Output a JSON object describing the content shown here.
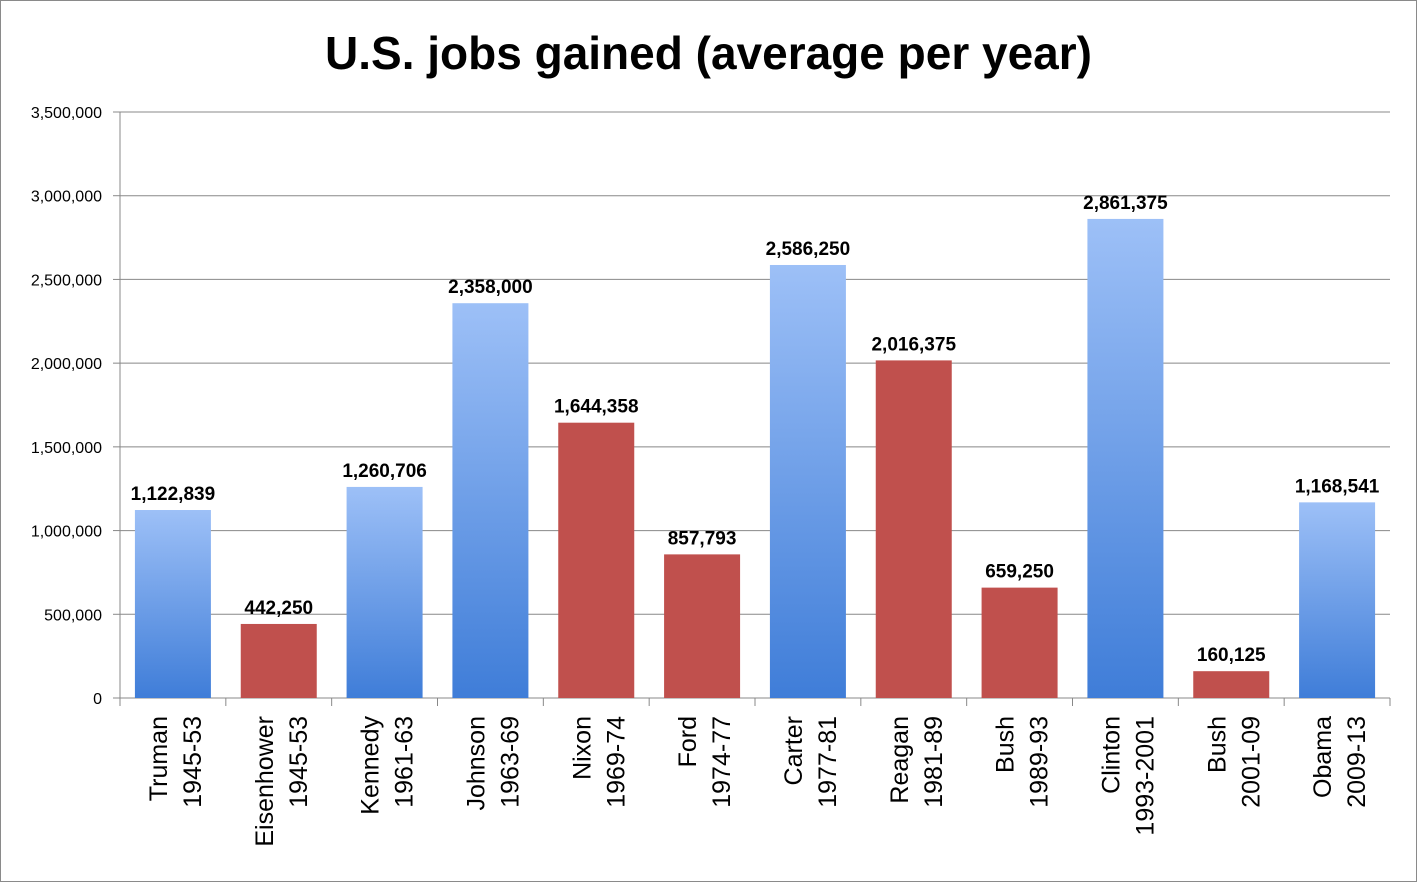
{
  "chart_data": {
    "type": "bar",
    "title": "U.S. jobs gained (average per year)",
    "xlabel": "",
    "ylabel": "",
    "ylim": [
      0,
      3500000
    ],
    "yticks": [
      0,
      500000,
      1000000,
      1500000,
      2000000,
      2500000,
      3000000,
      3500000
    ],
    "ytick_labels": [
      "0",
      "500,000",
      "1,000,000",
      "1,500,000",
      "2,000,000",
      "2,500,000",
      "3,000,000",
      "3,500,000"
    ],
    "grid": true,
    "colors": {
      "democrat": "#6f9ee8",
      "democrat_light": "#9dc0f7",
      "democrat_dark": "#3f7dd8",
      "republican": "#c0504d",
      "grid": "#888888"
    },
    "categories": [
      {
        "name": "Truman",
        "years": "1945-53",
        "party": "democrat"
      },
      {
        "name": "Eisenhower",
        "years": "1945-53",
        "party": "republican"
      },
      {
        "name": "Kennedy",
        "years": "1961-63",
        "party": "democrat"
      },
      {
        "name": "Johnson",
        "years": "1963-69",
        "party": "democrat"
      },
      {
        "name": "Nixon",
        "years": "1969-74",
        "party": "republican"
      },
      {
        "name": "Ford",
        "years": "1974-77",
        "party": "republican"
      },
      {
        "name": "Carter",
        "years": "1977-81",
        "party": "democrat"
      },
      {
        "name": "Reagan",
        "years": "1981-89",
        "party": "republican"
      },
      {
        "name": "Bush",
        "years": "1989-93",
        "party": "republican"
      },
      {
        "name": "Clinton",
        "years": "1993-2001",
        "party": "democrat"
      },
      {
        "name": "Bush",
        "years": "2001-09",
        "party": "republican"
      },
      {
        "name": "Obama",
        "years": "2009-13",
        "party": "democrat"
      }
    ],
    "values": [
      1122839,
      442250,
      1260706,
      2358000,
      1644358,
      857793,
      2586250,
      2016375,
      659250,
      2861375,
      160125,
      1168541
    ],
    "value_labels": [
      "1,122,839",
      "442,250",
      "1,260,706",
      "2,358,000",
      "1,644,358",
      "857,793",
      "2,586,250",
      "2,016,375",
      "659,250",
      "2,861,375",
      "160,125",
      "1,168,541"
    ]
  }
}
